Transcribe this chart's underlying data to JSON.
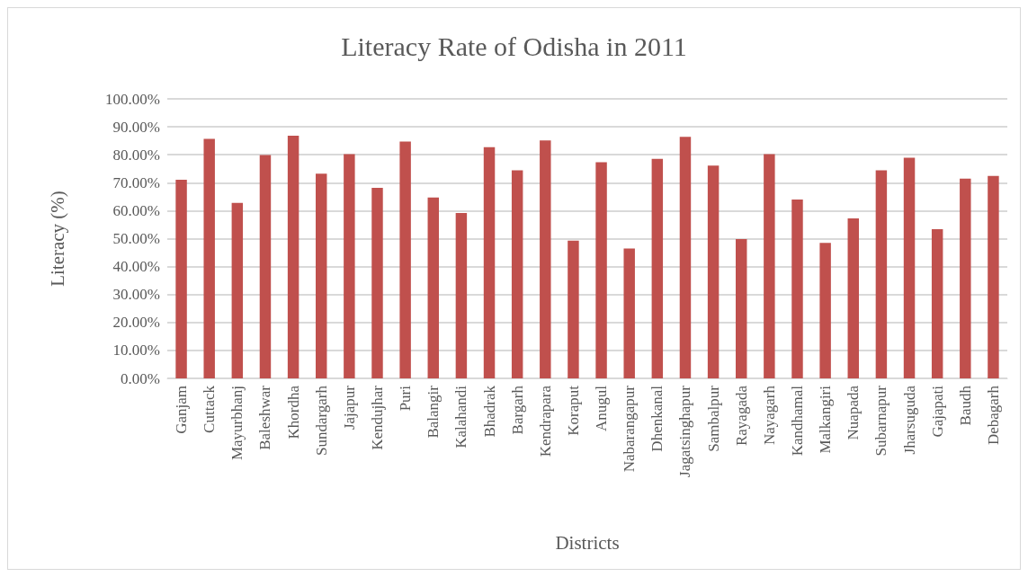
{
  "chart_data": {
    "type": "bar",
    "title": "Literacy Rate of Odisha in 2011",
    "xlabel": "Districts",
    "ylabel": "Literacy (%)",
    "categories": [
      "Ganjam",
      "Cuttack",
      "Mayurbhanj",
      "Baleshwar",
      "Khordha",
      "Sundargarh",
      "Jajapur",
      "Kendujhar",
      "Puri",
      "Balangir",
      "Kalahandi",
      "Bhadrak",
      "Bargarh",
      "Kendrapara",
      "Koraput",
      "Anugul",
      "Nabarangapur",
      "Dhenkanal",
      "Jagatsinghapur",
      "Sambalpur",
      "Rayagada",
      "Nayagarh",
      "Kandhamal",
      "Malkangiri",
      "Nuapada",
      "Subarnapur",
      "Jharsuguda",
      "Gajapati",
      "Baudh",
      "Debagarh"
    ],
    "values": [
      71.1,
      85.7,
      62.8,
      79.9,
      86.8,
      73.2,
      80.2,
      68.2,
      84.7,
      64.7,
      59.2,
      82.7,
      74.4,
      85.1,
      49.3,
      77.3,
      46.5,
      78.5,
      86.4,
      76.1,
      49.8,
      80.2,
      64.0,
      48.5,
      57.2,
      74.4,
      78.9,
      53.4,
      71.5,
      72.4
    ],
    "color": "#c0504d",
    "ylim": [
      0,
      100
    ],
    "yticks": [
      {
        "value": 0,
        "label": "0.00%"
      },
      {
        "value": 10,
        "label": "10.00%"
      },
      {
        "value": 20,
        "label": "20.00%"
      },
      {
        "value": 30,
        "label": "30.00%"
      },
      {
        "value": 40,
        "label": "40.00%"
      },
      {
        "value": 50,
        "label": "50.00%"
      },
      {
        "value": 60,
        "label": "60.00%"
      },
      {
        "value": 70,
        "label": "70.00%"
      },
      {
        "value": 80,
        "label": "80.00%"
      },
      {
        "value": 90,
        "label": "90.00%"
      },
      {
        "value": 100,
        "label": "100.00%"
      }
    ],
    "grid": "y"
  }
}
